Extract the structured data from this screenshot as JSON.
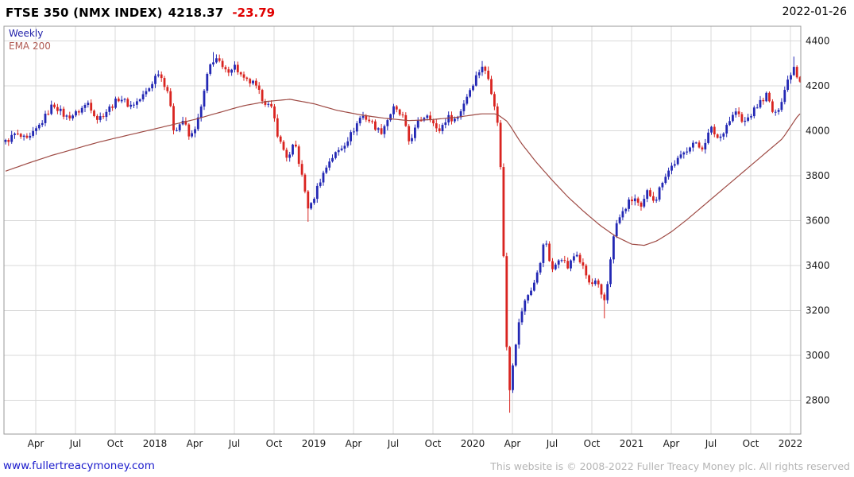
{
  "header": {
    "title": "FTSE 350 (NMX INDEX)",
    "price": "4218.37",
    "change": "-23.79",
    "date": "2022-01-26"
  },
  "legend": {
    "timeframe": "Weekly",
    "overlay": "EMA 200"
  },
  "footer": {
    "site_link": "www.fullertreacymoney.com",
    "copyright": "This website is © 2008-2022 Fuller Treacy Money plc. All rights reserved"
  },
  "colors": {
    "up": "#2328b4",
    "down": "#d92420",
    "ema": "#9e4a44",
    "grid": "#d9d9d9",
    "border": "#999999",
    "axis_text": "#1a1a1a",
    "change": "#e00000",
    "link": "#1a1acc",
    "copyright_text": "#b4b4b4",
    "weekly_label": "#2222aa",
    "ema_label": "#b05a52"
  },
  "chart_data": {
    "type": "candlestick",
    "title": "FTSE 350 (NMX INDEX)",
    "timeframe": "Weekly",
    "overlay": "EMA 200",
    "last_close": 4218.37,
    "change": -23.79,
    "as_of": "2022-01-26",
    "grid": true,
    "ylim": [
      2650,
      4465
    ],
    "yticks": [
      4400,
      4200,
      4000,
      3800,
      3600,
      3400,
      3200,
      3000,
      2800
    ],
    "xticks": [
      {
        "t": 2017.25,
        "label": "Apr"
      },
      {
        "t": 2017.5,
        "label": "Jul"
      },
      {
        "t": 2017.75,
        "label": "Oct"
      },
      {
        "t": 2018.0,
        "label": "2018"
      },
      {
        "t": 2018.25,
        "label": "Apr"
      },
      {
        "t": 2018.5,
        "label": "Jul"
      },
      {
        "t": 2018.75,
        "label": "Oct"
      },
      {
        "t": 2019.0,
        "label": "2019"
      },
      {
        "t": 2019.25,
        "label": "Apr"
      },
      {
        "t": 2019.5,
        "label": "Jul"
      },
      {
        "t": 2019.75,
        "label": "Oct"
      },
      {
        "t": 2020.0,
        "label": "2020"
      },
      {
        "t": 2020.25,
        "label": "Apr"
      },
      {
        "t": 2020.5,
        "label": "Jul"
      },
      {
        "t": 2020.75,
        "label": "Oct"
      },
      {
        "t": 2021.0,
        "label": "2021"
      },
      {
        "t": 2021.25,
        "label": "Apr"
      },
      {
        "t": 2021.5,
        "label": "Jul"
      },
      {
        "t": 2021.75,
        "label": "Oct"
      },
      {
        "t": 2022.0,
        "label": "2022"
      }
    ],
    "t_start": 2017.06,
    "t_end": 2022.055,
    "weeks_per_year": 52,
    "close_anchors": [
      [
        2017.06,
        3950
      ],
      [
        2017.12,
        3985
      ],
      [
        2017.2,
        3955
      ],
      [
        2017.28,
        4030
      ],
      [
        2017.36,
        4120
      ],
      [
        2017.44,
        4060
      ],
      [
        2017.5,
        4075
      ],
      [
        2017.58,
        4125
      ],
      [
        2017.64,
        4050
      ],
      [
        2017.72,
        4105
      ],
      [
        2017.78,
        4150
      ],
      [
        2017.84,
        4110
      ],
      [
        2017.9,
        4135
      ],
      [
        2017.96,
        4185
      ],
      [
        2018.02,
        4265
      ],
      [
        2018.08,
        4180
      ],
      [
        2018.12,
        4000
      ],
      [
        2018.18,
        4050
      ],
      [
        2018.22,
        3960
      ],
      [
        2018.28,
        4065
      ],
      [
        2018.34,
        4280
      ],
      [
        2018.38,
        4330
      ],
      [
        2018.44,
        4260
      ],
      [
        2018.5,
        4290
      ],
      [
        2018.56,
        4225
      ],
      [
        2018.62,
        4210
      ],
      [
        2018.68,
        4140
      ],
      [
        2018.74,
        4090
      ],
      [
        2018.78,
        3960
      ],
      [
        2018.84,
        3870
      ],
      [
        2018.88,
        3950
      ],
      [
        2018.93,
        3780
      ],
      [
        2018.97,
        3640
      ],
      [
        2019.03,
        3765
      ],
      [
        2019.1,
        3870
      ],
      [
        2019.18,
        3930
      ],
      [
        2019.24,
        3990
      ],
      [
        2019.3,
        4070
      ],
      [
        2019.36,
        4040
      ],
      [
        2019.42,
        3990
      ],
      [
        2019.5,
        4100
      ],
      [
        2019.56,
        4060
      ],
      [
        2019.6,
        3950
      ],
      [
        2019.66,
        4040
      ],
      [
        2019.72,
        4080
      ],
      [
        2019.78,
        3990
      ],
      [
        2019.84,
        4060
      ],
      [
        2019.9,
        4050
      ],
      [
        2019.96,
        4150
      ],
      [
        2020.02,
        4240
      ],
      [
        2020.06,
        4290
      ],
      [
        2020.1,
        4230
      ],
      [
        2020.14,
        4110
      ],
      [
        2020.17,
        3960
      ],
      [
        2020.195,
        3430
      ],
      [
        2020.225,
        2810
      ],
      [
        2020.26,
        3010
      ],
      [
        2020.3,
        3180
      ],
      [
        2020.34,
        3260
      ],
      [
        2020.38,
        3310
      ],
      [
        2020.42,
        3390
      ],
      [
        2020.45,
        3530
      ],
      [
        2020.5,
        3370
      ],
      [
        2020.55,
        3450
      ],
      [
        2020.6,
        3390
      ],
      [
        2020.65,
        3460
      ],
      [
        2020.7,
        3380
      ],
      [
        2020.74,
        3310
      ],
      [
        2020.78,
        3330
      ],
      [
        2020.81,
        3260
      ],
      [
        2020.835,
        3240
      ],
      [
        2020.87,
        3450
      ],
      [
        2020.9,
        3580
      ],
      [
        2020.94,
        3630
      ],
      [
        2020.98,
        3680
      ],
      [
        2021.02,
        3700
      ],
      [
        2021.06,
        3650
      ],
      [
        2021.1,
        3730
      ],
      [
        2021.15,
        3690
      ],
      [
        2021.2,
        3790
      ],
      [
        2021.26,
        3850
      ],
      [
        2021.32,
        3890
      ],
      [
        2021.38,
        3950
      ],
      [
        2021.44,
        3920
      ],
      [
        2021.5,
        4010
      ],
      [
        2021.55,
        3960
      ],
      [
        2021.6,
        4030
      ],
      [
        2021.66,
        4090
      ],
      [
        2021.7,
        4030
      ],
      [
        2021.76,
        4080
      ],
      [
        2021.8,
        4120
      ],
      [
        2021.85,
        4160
      ],
      [
        2021.9,
        4060
      ],
      [
        2021.94,
        4130
      ],
      [
        2021.98,
        4220
      ],
      [
        2022.02,
        4290
      ],
      [
        2022.055,
        4218.37
      ]
    ],
    "ema_anchors": [
      [
        2017.06,
        3820
      ],
      [
        2017.2,
        3855
      ],
      [
        2017.35,
        3890
      ],
      [
        2017.5,
        3920
      ],
      [
        2017.65,
        3950
      ],
      [
        2017.8,
        3975
      ],
      [
        2017.95,
        4000
      ],
      [
        2018.1,
        4025
      ],
      [
        2018.25,
        4050
      ],
      [
        2018.4,
        4080
      ],
      [
        2018.55,
        4110
      ],
      [
        2018.7,
        4130
      ],
      [
        2018.85,
        4140
      ],
      [
        2019.0,
        4120
      ],
      [
        2019.15,
        4090
      ],
      [
        2019.3,
        4070
      ],
      [
        2019.45,
        4055
      ],
      [
        2019.6,
        4045
      ],
      [
        2019.75,
        4050
      ],
      [
        2019.9,
        4060
      ],
      [
        2020.05,
        4075
      ],
      [
        2020.15,
        4075
      ],
      [
        2020.22,
        4040
      ],
      [
        2020.3,
        3950
      ],
      [
        2020.4,
        3860
      ],
      [
        2020.5,
        3780
      ],
      [
        2020.6,
        3705
      ],
      [
        2020.7,
        3640
      ],
      [
        2020.8,
        3580
      ],
      [
        2020.9,
        3530
      ],
      [
        2021.0,
        3495
      ],
      [
        2021.08,
        3490
      ],
      [
        2021.16,
        3510
      ],
      [
        2021.25,
        3550
      ],
      [
        2021.35,
        3605
      ],
      [
        2021.45,
        3665
      ],
      [
        2021.55,
        3725
      ],
      [
        2021.65,
        3785
      ],
      [
        2021.75,
        3845
      ],
      [
        2021.85,
        3905
      ],
      [
        2021.95,
        3965
      ],
      [
        2022.055,
        4075
      ]
    ],
    "wick_extremes": [
      {
        "t": 2018.37,
        "high": 4350
      },
      {
        "t": 2020.06,
        "high": 4310
      },
      {
        "t": 2022.02,
        "high": 4330
      },
      {
        "t": 2018.97,
        "low": 3595
      },
      {
        "t": 2020.23,
        "low": 2745
      },
      {
        "t": 2020.835,
        "low": 3165
      }
    ]
  }
}
